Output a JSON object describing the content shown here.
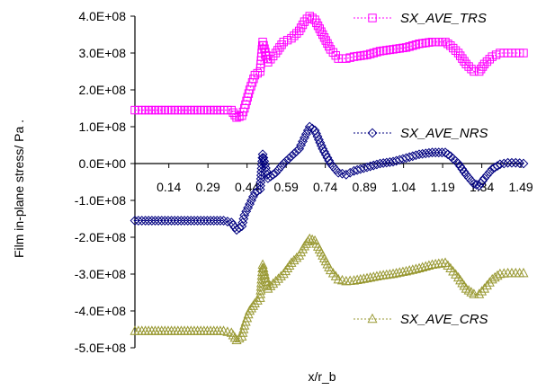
{
  "chart_data": {
    "type": "line",
    "title": "",
    "xlabel": "x/r_b",
    "ylabel": "Film in-plane stress/ Pa .",
    "xlim": [
      0.01,
      1.5
    ],
    "ylim": [
      -500000000,
      400000000
    ],
    "x_ticks": [
      0.14,
      0.29,
      0.44,
      0.59,
      0.74,
      0.89,
      1.04,
      1.19,
      1.34,
      1.49
    ],
    "x_tick_labels": [
      "0.14",
      "0.29",
      "0.44",
      "0.59",
      "0.74",
      "0.89",
      "1.04",
      "1.19",
      "1.34",
      "1.49"
    ],
    "y_ticks": [
      400000000,
      300000000,
      200000000,
      100000000,
      0,
      -100000000,
      -200000000,
      -300000000,
      -400000000,
      -500000000
    ],
    "y_tick_labels": [
      "4.0E+08",
      "3.0E+08",
      "2.0E+08",
      "1.0E+08",
      "0.0E+00",
      "-1.0E+08",
      "-2.0E+08",
      "-3.0E+08",
      "-4.0E+08",
      "-5.0E+08"
    ],
    "grid": false,
    "series": [
      {
        "name": "SX_AVE_TRS",
        "color": "#FF00FF",
        "marker": "square",
        "x": [
          0.01,
          0.05,
          0.1,
          0.15,
          0.2,
          0.25,
          0.3,
          0.35,
          0.38,
          0.4,
          0.42,
          0.43,
          0.45,
          0.47,
          0.49,
          0.5,
          0.52,
          0.55,
          0.58,
          0.61,
          0.64,
          0.66,
          0.68,
          0.7,
          0.73,
          0.76,
          0.79,
          0.82,
          0.85,
          0.9,
          0.95,
          1.0,
          1.05,
          1.1,
          1.15,
          1.2,
          1.22,
          1.25,
          1.28,
          1.31,
          1.33,
          1.35,
          1.38,
          1.41,
          1.44,
          1.47,
          1.5
        ],
        "values": [
          145000000,
          145000000,
          145000000,
          145000000,
          145000000,
          145000000,
          145000000,
          145000000,
          145000000,
          125000000,
          130000000,
          150000000,
          200000000,
          240000000,
          250000000,
          330000000,
          275000000,
          300000000,
          330000000,
          340000000,
          360000000,
          385000000,
          400000000,
          390000000,
          350000000,
          310000000,
          285000000,
          285000000,
          290000000,
          295000000,
          305000000,
          310000000,
          315000000,
          325000000,
          330000000,
          330000000,
          320000000,
          300000000,
          270000000,
          250000000,
          250000000,
          270000000,
          290000000,
          300000000,
          300000000,
          300000000,
          300000000
        ]
      },
      {
        "name": "SX_AVE_NRS",
        "color": "#000080",
        "marker": "diamond",
        "x": [
          0.01,
          0.05,
          0.1,
          0.15,
          0.2,
          0.25,
          0.3,
          0.35,
          0.38,
          0.4,
          0.42,
          0.43,
          0.45,
          0.47,
          0.49,
          0.5,
          0.52,
          0.55,
          0.58,
          0.61,
          0.64,
          0.66,
          0.68,
          0.7,
          0.73,
          0.76,
          0.79,
          0.82,
          0.85,
          0.9,
          0.95,
          1.0,
          1.05,
          1.1,
          1.15,
          1.2,
          1.22,
          1.25,
          1.28,
          1.31,
          1.33,
          1.35,
          1.38,
          1.41,
          1.44,
          1.47,
          1.5
        ],
        "values": [
          -155000000,
          -155000000,
          -155000000,
          -155000000,
          -155000000,
          -155000000,
          -155000000,
          -155000000,
          -160000000,
          -180000000,
          -170000000,
          -140000000,
          -110000000,
          -80000000,
          -70000000,
          25000000,
          -40000000,
          -25000000,
          0,
          20000000,
          40000000,
          70000000,
          100000000,
          90000000,
          40000000,
          0,
          -25000000,
          -30000000,
          -20000000,
          -10000000,
          0,
          5000000,
          15000000,
          25000000,
          30000000,
          30000000,
          20000000,
          0,
          -30000000,
          -55000000,
          -60000000,
          -40000000,
          -15000000,
          -2000000,
          2000000,
          2000000,
          0
        ]
      },
      {
        "name": "SX_AVE_CRS",
        "color": "#999933",
        "marker": "triangle",
        "x": [
          0.01,
          0.05,
          0.1,
          0.15,
          0.2,
          0.25,
          0.3,
          0.35,
          0.38,
          0.4,
          0.42,
          0.43,
          0.45,
          0.47,
          0.49,
          0.5,
          0.52,
          0.55,
          0.58,
          0.61,
          0.64,
          0.66,
          0.68,
          0.7,
          0.73,
          0.76,
          0.79,
          0.82,
          0.85,
          0.9,
          0.95,
          1.0,
          1.05,
          1.1,
          1.15,
          1.2,
          1.22,
          1.25,
          1.28,
          1.31,
          1.33,
          1.35,
          1.38,
          1.41,
          1.44,
          1.47,
          1.5
        ],
        "values": [
          -455000000,
          -455000000,
          -455000000,
          -455000000,
          -455000000,
          -455000000,
          -455000000,
          -455000000,
          -460000000,
          -480000000,
          -470000000,
          -440000000,
          -400000000,
          -380000000,
          -365000000,
          -275000000,
          -340000000,
          -320000000,
          -300000000,
          -270000000,
          -250000000,
          -225000000,
          -205000000,
          -210000000,
          -250000000,
          -290000000,
          -315000000,
          -320000000,
          -318000000,
          -312000000,
          -305000000,
          -300000000,
          -293000000,
          -285000000,
          -275000000,
          -270000000,
          -285000000,
          -310000000,
          -340000000,
          -355000000,
          -355000000,
          -340000000,
          -315000000,
          -300000000,
          -298000000,
          -298000000,
          -298000000
        ]
      }
    ],
    "legend_placement": "series labels placed beside each curve (right side)"
  }
}
